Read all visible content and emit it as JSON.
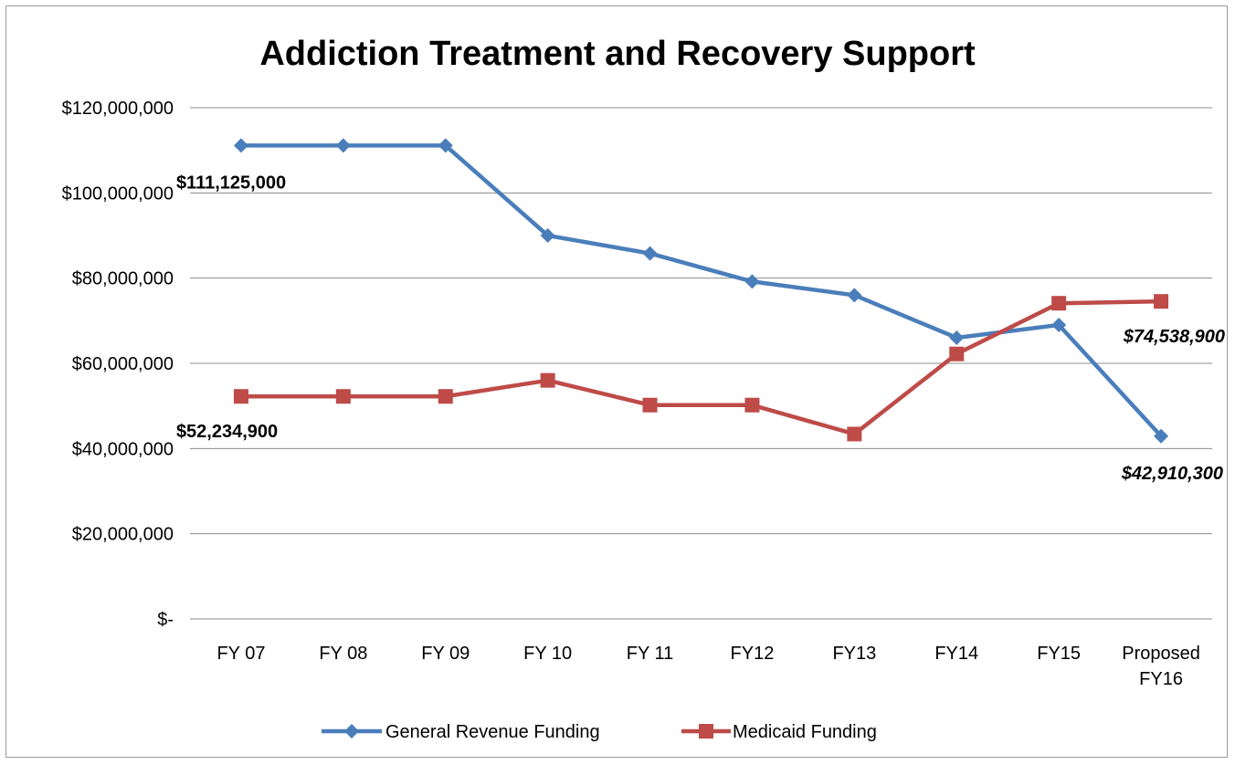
{
  "chart_data": {
    "type": "line",
    "title": "Addiction Treatment and Recovery Support",
    "xlabel": "",
    "ylabel": "",
    "ylim": [
      0,
      120000000
    ],
    "yticks": [
      {
        "value": 0,
        "label": "$-"
      },
      {
        "value": 20000000,
        "label": "$20,000,000"
      },
      {
        "value": 40000000,
        "label": "$40,000,000"
      },
      {
        "value": 60000000,
        "label": "$60,000,000"
      },
      {
        "value": 80000000,
        "label": "$80,000,000"
      },
      {
        "value": 100000000,
        "label": "$100,000,000"
      },
      {
        "value": 120000000,
        "label": "$120,000,000"
      }
    ],
    "categories": [
      [
        "FY 07"
      ],
      [
        "FY 08"
      ],
      [
        "FY 09"
      ],
      [
        "FY 10"
      ],
      [
        "FY 11"
      ],
      [
        "FY12"
      ],
      [
        "FY13"
      ],
      [
        "FY14"
      ],
      [
        "FY15"
      ],
      [
        "Proposed",
        "FY16"
      ]
    ],
    "grid": true,
    "legend_position": "bottom",
    "series": [
      {
        "name": "General Revenue Funding",
        "color": "#4a7ebb",
        "marker": "diamond",
        "values": [
          111125000,
          111125000,
          111125000,
          90000000,
          85800000,
          79200000,
          76000000,
          66000000,
          69000000,
          42910300
        ]
      },
      {
        "name": "Medicaid Funding",
        "color": "#be4b48",
        "marker": "square",
        "values": [
          52234900,
          52234900,
          52234900,
          56000000,
          50200000,
          50200000,
          43400000,
          62200000,
          74100000,
          74538900
        ]
      }
    ],
    "data_labels": [
      {
        "series": 0,
        "index": 0,
        "text": "$111,125,000",
        "italic": false
      },
      {
        "series": 1,
        "index": 0,
        "text": "$52,234,900",
        "italic": false
      },
      {
        "series": 1,
        "index": 9,
        "text": "$74,538,900",
        "italic": true
      },
      {
        "series": 0,
        "index": 9,
        "text": "$42,910,300",
        "italic": true
      }
    ]
  }
}
